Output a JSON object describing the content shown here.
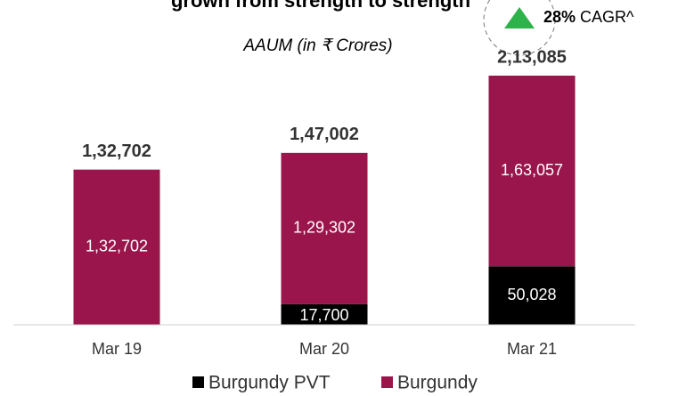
{
  "chart_data": {
    "type": "stacked_bar",
    "title": "grown from strength to strength",
    "subtitle": "AAUM (in ₹ Crores)",
    "categories": [
      "Mar 19",
      "Mar 20",
      "Mar 21"
    ],
    "series": [
      {
        "name": "Burgundy PVT",
        "color": "#000000",
        "values": [
          null,
          17700,
          50028
        ],
        "value_labels": [
          null,
          "17,700",
          "50,028"
        ]
      },
      {
        "name": "Burgundy",
        "color": "#99154b",
        "values": [
          132702,
          129302,
          163057
        ],
        "value_labels": [
          "1,32,702",
          "1,29,302",
          "1,63,057"
        ]
      }
    ],
    "totals": {
      "values": [
        132702,
        147002,
        213085
      ],
      "value_labels": [
        "1,32,702",
        "1,47,002",
        "2,13,085"
      ]
    },
    "annotation": {
      "label": "28%",
      "text": "CAGR^",
      "color": "#2db34a"
    },
    "legend": "bottom"
  }
}
